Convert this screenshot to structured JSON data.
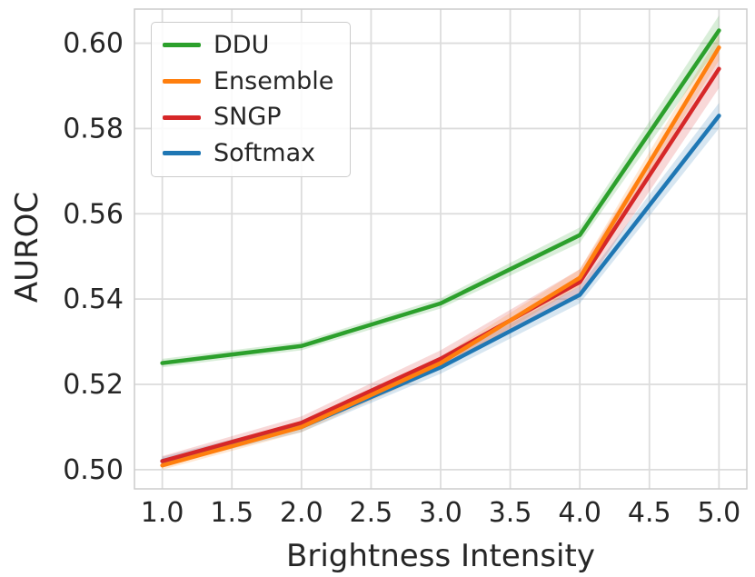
{
  "chart_data": {
    "type": "line",
    "title": "",
    "xlabel": "Brightness Intensity",
    "ylabel": "AUROC",
    "x": [
      1.0,
      2.0,
      3.0,
      4.0,
      5.0
    ],
    "xlim": [
      0.8,
      5.2
    ],
    "ylim": [
      0.4955,
      0.608
    ],
    "grid": true,
    "legend_position": "upper-left",
    "x_ticks": {
      "values": [
        1.0,
        1.5,
        2.0,
        2.5,
        3.0,
        3.5,
        4.0,
        4.5,
        5.0
      ],
      "labels": [
        "1.0",
        "1.5",
        "2.0",
        "2.5",
        "3.0",
        "3.5",
        "4.0",
        "4.5",
        "5.0"
      ]
    },
    "y_ticks": {
      "values": [
        0.5,
        0.52,
        0.54,
        0.56,
        0.58,
        0.6
      ],
      "labels": [
        "0.50",
        "0.52",
        "0.54",
        "0.56",
        "0.58",
        "0.60"
      ]
    },
    "series": [
      {
        "name": "DDU",
        "color": "#2ca02c",
        "values": [
          0.525,
          0.529,
          0.539,
          0.555,
          0.603
        ],
        "band": [
          0.001,
          0.001,
          0.0012,
          0.0018,
          0.0035
        ]
      },
      {
        "name": "Ensemble",
        "color": "#ff7f0e",
        "values": [
          0.501,
          0.51,
          0.525,
          0.545,
          0.599
        ],
        "band": [
          0.001,
          0.0012,
          0.0015,
          0.002,
          0.003
        ]
      },
      {
        "name": "SNGP",
        "color": "#d62728",
        "values": [
          0.502,
          0.511,
          0.526,
          0.544,
          0.594
        ],
        "band": [
          0.0012,
          0.0015,
          0.002,
          0.003,
          0.0045
        ]
      },
      {
        "name": "Softmax",
        "color": "#1f77b4",
        "values": [
          0.502,
          0.51,
          0.524,
          0.541,
          0.583
        ],
        "band": [
          0.001,
          0.0012,
          0.0015,
          0.002,
          0.003
        ]
      }
    ]
  },
  "style": {
    "text_color": "#262626",
    "grid_color": "#dcdcdc",
    "spine_color": "#cccccc",
    "background": "#ffffff",
    "tick_font_size": 30,
    "line_width": 4.5
  }
}
